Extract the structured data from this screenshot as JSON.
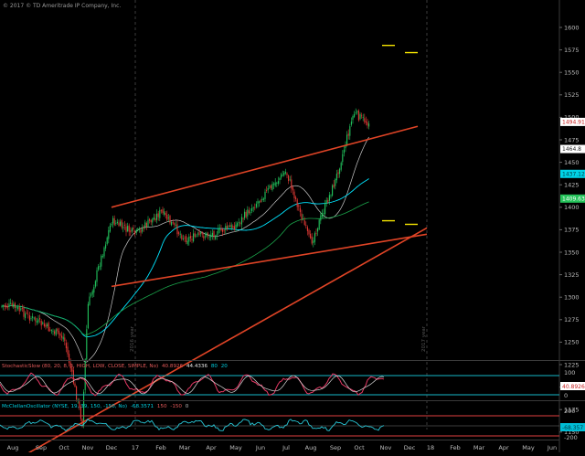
{
  "window": {
    "copyright": "© 2017 © TD Ameritrade IP Company, Inc."
  },
  "price_axis": {
    "ticks": [
      "1600",
      "1575",
      "1550",
      "1525",
      "1500",
      "1475",
      "1450",
      "1425",
      "1400",
      "1375",
      "1350",
      "1325",
      "1300",
      "1275",
      "1250",
      "1225",
      "1200",
      "1175",
      "1150",
      "1125"
    ],
    "tick_values": [
      1600,
      1575,
      1550,
      1525,
      1500,
      1475,
      1450,
      1425,
      1400,
      1375,
      1350,
      1325,
      1300,
      1275,
      1250,
      1225,
      1200,
      1175,
      1150,
      1125
    ],
    "badges": [
      {
        "label": "1494.91",
        "value": 1494.91,
        "bg": "#ffffff",
        "fg": "#c81e1e"
      },
      {
        "label": "1464.8",
        "value": 1464.8,
        "bg": "#ffffff",
        "fg": "#222222"
      },
      {
        "label": "1437.12",
        "value": 1437.12,
        "bg": "#00d4e8",
        "fg": "#003b44"
      },
      {
        "label": "1409.63",
        "value": 1409.63,
        "bg": "#25c25a",
        "fg": "#ffffff"
      }
    ]
  },
  "month_axis": {
    "labels": [
      "Aug",
      "Sep",
      "Oct",
      "Nov",
      "Dec",
      "17",
      "Feb",
      "Mar",
      "Apr",
      "May",
      "Jun",
      "Jul",
      "Aug",
      "Sep",
      "Oct",
      "Nov",
      "Dec",
      "18",
      "Feb",
      "Mar",
      "Apr",
      "May",
      "Jun"
    ]
  },
  "year_markers": [
    "2016 year",
    "2017 year"
  ],
  "studies": {
    "stochastic": {
      "label": "StochasticSlow (80, 20, 8, 3, HIGH, LOW, CLOSE, SIMPLE, No)",
      "value1": "40.8926",
      "value2": "44.4336",
      "ob": "80",
      "os": "20",
      "axis": [
        "100",
        "0"
      ],
      "badge": "40.8926"
    },
    "mcclellan": {
      "label": "McClellanOscillator (NYSE, 19, 39, 150, -150, No)",
      "value": "-68.3571",
      "upper": "150",
      "lower": "-150",
      "zero": "0",
      "axis": [
        "200",
        "-200"
      ],
      "badge": "-68.357"
    }
  },
  "chart_data": {
    "type": "candlestick",
    "symbol_title": "",
    "price_range": [
      1110,
      1620
    ],
    "x_axis_range": [
      "Aug 2016",
      "Jun 2018"
    ],
    "price_points": [
      {
        "date": "Aug 2016",
        "close": 1290
      },
      {
        "date": "Sep 2016",
        "close": 1270
      },
      {
        "date": "Oct 2016",
        "close": 1255
      },
      {
        "date": "early Nov 2016",
        "close": 1160
      },
      {
        "date": "mid Nov 2016",
        "close": 1290
      },
      {
        "date": "Dec 2016",
        "close": 1385
      },
      {
        "date": "Jan 2017",
        "close": 1370
      },
      {
        "date": "Feb 2017",
        "close": 1395
      },
      {
        "date": "Mar 2017",
        "close": 1365
      },
      {
        "date": "Apr 2017",
        "close": 1370
      },
      {
        "date": "May 2017",
        "close": 1380
      },
      {
        "date": "Jun 2017",
        "close": 1410
      },
      {
        "date": "Jul 2017",
        "close": 1440
      },
      {
        "date": "Aug 2017",
        "close": 1360
      },
      {
        "date": "Sep 2017",
        "close": 1430
      },
      {
        "date": "early Oct 2017",
        "close": 1505
      },
      {
        "date": "late Oct 2017",
        "close": 1494.91
      }
    ],
    "trendlines": [
      {
        "from": {
          "date": "Dec 2016",
          "price": 1400
        },
        "to": {
          "date": "Nov 2017",
          "price": 1490
        },
        "color": "#e04426"
      },
      {
        "from": {
          "date": "Dec 2016",
          "price": 1312
        },
        "to": {
          "date": "Dec 2017",
          "price": 1370
        },
        "color": "#e04426"
      },
      {
        "from": {
          "date": "Aug 2016",
          "price": 1110
        },
        "to": {
          "date": "Dec 2017",
          "price": 1377
        },
        "color": "#e04426"
      }
    ],
    "price_targets": [
      1580,
      1572,
      1385,
      1381
    ],
    "colors": {
      "up": "#22c55e",
      "down": "#e53935",
      "sma_fast": "#00e5ff",
      "sma_mid": "#c8c8c8",
      "sma_slow": "#1aa34a",
      "trend": "#e04426",
      "target": "#f5e500"
    }
  }
}
